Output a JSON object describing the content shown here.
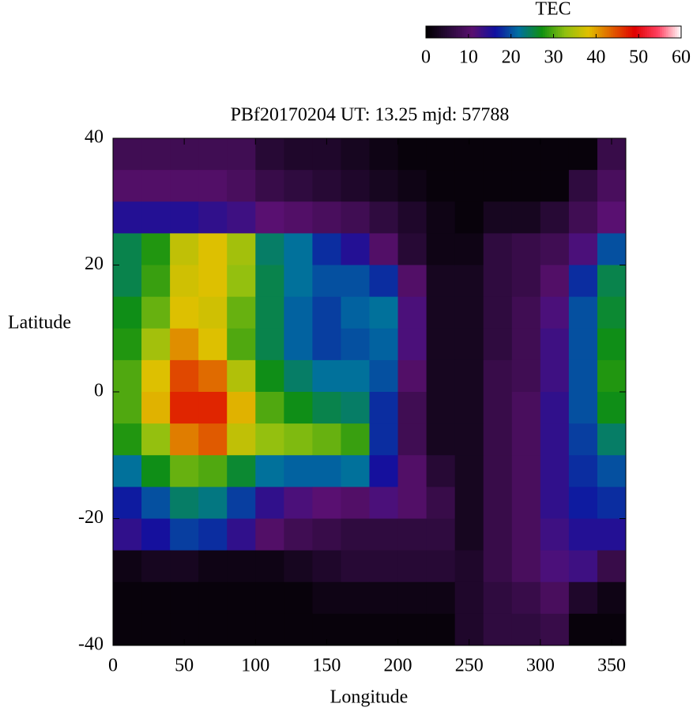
{
  "chart_data": {
    "type": "heatmap",
    "title": "PBf20170204  UT: 13.25  mjd: 57788",
    "xlabel": "Longitude",
    "ylabel": "Latitude",
    "colorbar_label": "TEC",
    "x": [
      10,
      30,
      50,
      70,
      90,
      110,
      130,
      150,
      170,
      190,
      210,
      230,
      250,
      270,
      290,
      310,
      330,
      350
    ],
    "y": [
      37.5,
      32.5,
      27.5,
      22.5,
      17.5,
      12.5,
      7.5,
      2.5,
      -2.5,
      -7.5,
      -12.5,
      -17.5,
      -22.5,
      -27.5,
      -32.5,
      -37.5
    ],
    "z": [
      [
        8,
        8,
        8,
        8,
        8,
        5,
        4,
        4,
        3,
        2,
        1,
        1,
        1,
        1,
        1,
        1,
        1,
        7
      ],
      [
        10,
        10,
        10,
        10,
        9,
        7,
        6,
        5,
        4,
        3,
        2,
        1,
        1,
        1,
        1,
        1,
        6,
        9
      ],
      [
        15,
        15,
        15,
        14,
        13,
        11,
        10,
        9,
        8,
        6,
        4,
        2,
        1,
        3,
        3,
        5,
        8,
        11
      ],
      [
        25,
        28,
        36,
        38,
        34,
        24,
        22,
        18,
        15,
        10,
        5,
        2,
        2,
        6,
        7,
        8,
        12,
        20
      ],
      [
        25,
        29,
        37,
        38,
        33,
        25,
        22,
        20,
        20,
        18,
        10,
        3,
        3,
        6,
        7,
        10,
        18,
        25
      ],
      [
        27,
        31,
        38,
        37,
        31,
        25,
        21,
        19,
        21,
        22,
        12,
        3,
        3,
        6,
        8,
        12,
        20,
        26
      ],
      [
        28,
        34,
        41,
        38,
        30,
        25,
        21,
        19,
        20,
        21,
        12,
        3,
        3,
        6,
        8,
        13,
        20,
        27
      ],
      [
        30,
        38,
        45,
        43,
        35,
        27,
        24,
        22,
        22,
        20,
        10,
        3,
        3,
        7,
        8,
        13,
        20,
        28
      ],
      [
        30,
        39,
        47,
        47,
        39,
        30,
        27,
        25,
        24,
        18,
        8,
        3,
        3,
        7,
        9,
        14,
        20,
        27
      ],
      [
        28,
        33,
        42,
        44,
        36,
        33,
        32,
        31,
        29,
        18,
        8,
        3,
        3,
        7,
        9,
        14,
        19,
        24
      ],
      [
        22,
        27,
        31,
        30,
        26,
        22,
        21,
        21,
        22,
        16,
        10,
        5,
        3,
        7,
        9,
        14,
        18,
        20
      ],
      [
        17,
        20,
        24,
        23,
        19,
        14,
        12,
        11,
        10,
        12,
        10,
        7,
        3,
        7,
        9,
        14,
        17,
        18
      ],
      [
        14,
        16,
        19,
        18,
        14,
        10,
        8,
        7,
        6,
        6,
        6,
        6,
        3,
        7,
        9,
        13,
        15,
        15
      ],
      [
        2,
        3,
        3,
        2,
        2,
        2,
        3,
        4,
        5,
        5,
        5,
        5,
        4,
        7,
        9,
        12,
        13,
        7
      ],
      [
        1,
        1,
        1,
        1,
        1,
        1,
        1,
        2,
        2,
        2,
        2,
        2,
        4,
        6,
        7,
        9,
        4,
        2
      ],
      [
        1,
        1,
        1,
        1,
        1,
        1,
        1,
        1,
        1,
        1,
        1,
        1,
        4,
        6,
        6,
        7,
        1,
        1
      ]
    ],
    "xlim": [
      0,
      360
    ],
    "ylim": [
      -40,
      40
    ],
    "xticks": [
      0,
      50,
      100,
      150,
      200,
      250,
      300,
      350
    ],
    "yticks": [
      -40,
      -20,
      0,
      20,
      40
    ],
    "clim": [
      0,
      60
    ],
    "cticks": [
      0,
      10,
      20,
      30,
      40,
      50,
      60
    ],
    "colormap": [
      "#000000",
      "#2a0a3a",
      "#5a1070",
      "#1010a0",
      "#0070a0",
      "#109010",
      "#90c010",
      "#e0c000",
      "#e06000",
      "#e00000",
      "#ff4060",
      "#ffffff"
    ]
  }
}
